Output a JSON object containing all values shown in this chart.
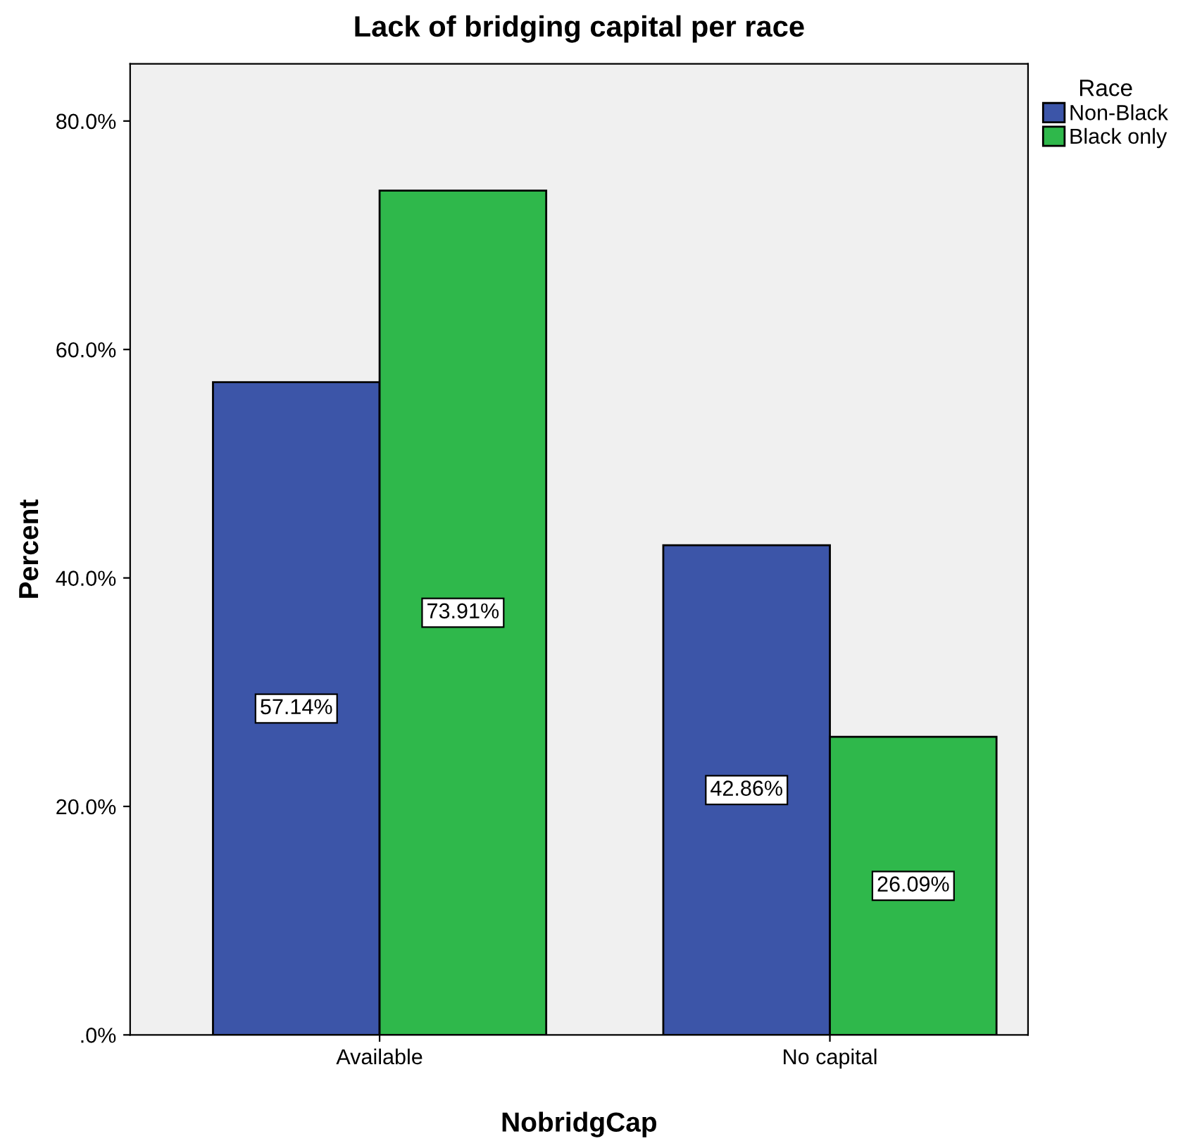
{
  "chart_data": {
    "type": "bar",
    "title": "Lack of bridging capital per race",
    "xlabel": "NobridgCap",
    "ylabel": "Percent",
    "legend_title": "Race",
    "categories": [
      "Available",
      "No capital"
    ],
    "series": [
      {
        "name": "Non-Black",
        "color": "#3c55a8",
        "values": [
          57.14,
          42.86
        ],
        "value_labels": [
          "57.14%",
          "42.86%"
        ]
      },
      {
        "name": "Black only",
        "color": "#2fb84b",
        "values": [
          73.91,
          26.09
        ],
        "value_labels": [
          "73.91%",
          "26.09%"
        ]
      }
    ],
    "ylim": [
      0,
      85
    ],
    "yticks": [
      {
        "value": 0,
        "label": ".0%"
      },
      {
        "value": 20,
        "label": "20.0%"
      },
      {
        "value": 40,
        "label": "40.0%"
      },
      {
        "value": 60,
        "label": "60.0%"
      },
      {
        "value": 80,
        "label": "80.0%"
      }
    ],
    "grid": false,
    "legend": "top right"
  }
}
